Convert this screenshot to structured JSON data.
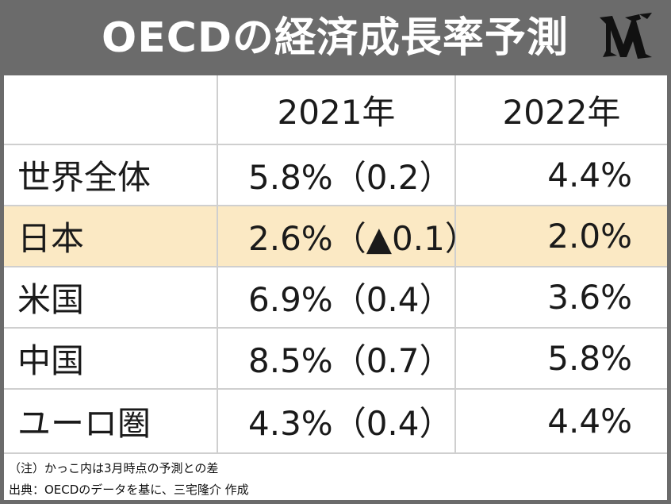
{
  "title": "OECDの経済成長率予測",
  "logo_icon": "publisher-logo-icon",
  "table": {
    "headers": [
      "",
      "2021年",
      "2022年"
    ],
    "rows": [
      {
        "region": "世界全体",
        "y2021": "5.8%（0.2）",
        "y2022": "4.4%",
        "highlight": false
      },
      {
        "region": "日本",
        "y2021": "2.6%（▲0.1）",
        "y2022": "2.0%",
        "highlight": true
      },
      {
        "region": "米国",
        "y2021": "6.9%（0.4）",
        "y2022": "3.6%",
        "highlight": false
      },
      {
        "region": "中国",
        "y2021": "8.5%（0.7）",
        "y2022": "5.8%",
        "highlight": false
      },
      {
        "region": "ユーロ圏",
        "y2021": "4.3%（0.4）",
        "y2022": "4.4%",
        "highlight": false
      }
    ]
  },
  "notes": {
    "note1": "（注）かっこ内は3月時点の予測との差",
    "note2": "出典：OECDのデータを基に、三宅隆介 作成"
  },
  "colors": {
    "header_bg": "#6b6b6b",
    "highlight_row": "#fbe9c4",
    "grid": "#cfcfcf"
  }
}
